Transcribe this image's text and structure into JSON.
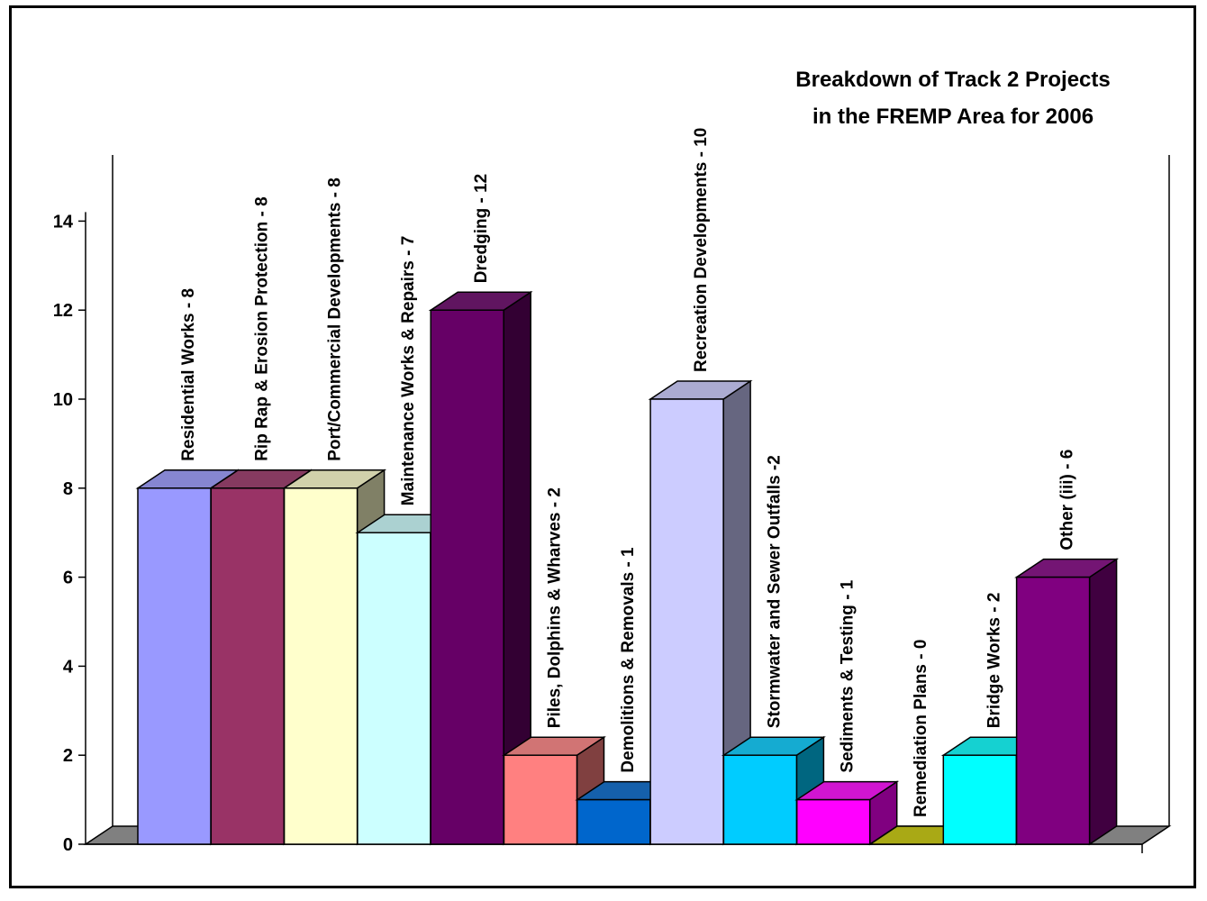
{
  "chart_data": {
    "type": "bar",
    "title_lines": [
      "Breakdown of Track 2 Projects",
      "in the FREMP Area for 2006"
    ],
    "xlabel": "",
    "ylabel": "",
    "ylim": [
      0,
      14
    ],
    "yticks": [
      0,
      2,
      4,
      6,
      8,
      10,
      12,
      14
    ],
    "grid": false,
    "legend": "none",
    "categories": [
      "Residential Works - 8",
      "Rip Rap & Erosion Protection - 8",
      "Port/Commercial Developments - 8",
      "Maintenance Works & Repairs - 7",
      "Dredging - 12",
      "Piles, Dolphins & Wharves - 2",
      "Demolitions & Removals - 1",
      "Recreation Developments - 10",
      "Stormwater and Sewer Outfalls -2",
      "Sediments & Testing - 1",
      "Remediation Plans - 0",
      "Bridge Works - 2",
      "Other (iii) - 6"
    ],
    "values": [
      8,
      8,
      8,
      7,
      12,
      2,
      1,
      10,
      2,
      1,
      0,
      2,
      6
    ],
    "colors": [
      "#9999FF",
      "#993366",
      "#FFFFCC",
      "#CCFFFF",
      "#660066",
      "#FF8080",
      "#0066CC",
      "#CCCCFF",
      "#00CCFF",
      "#FF00FF",
      "#C8C800",
      "#00FFFF",
      "#800080"
    ],
    "floor_color": "#808080"
  }
}
